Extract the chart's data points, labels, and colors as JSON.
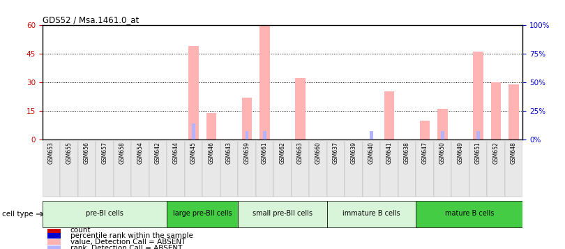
{
  "title": "GDS52 / Msa.1461.0_at",
  "samples": [
    "GSM653",
    "GSM655",
    "GSM656",
    "GSM657",
    "GSM658",
    "GSM654",
    "GSM642",
    "GSM644",
    "GSM645",
    "GSM646",
    "GSM643",
    "GSM659",
    "GSM661",
    "GSM662",
    "GSM663",
    "GSM660",
    "GSM637",
    "GSM639",
    "GSM640",
    "GSM641",
    "GSM638",
    "GSM647",
    "GSM650",
    "GSM649",
    "GSM651",
    "GSM652",
    "GSM648"
  ],
  "values_absent": [
    0,
    0,
    0,
    0,
    0,
    0,
    0,
    0,
    49,
    14,
    0,
    22,
    60,
    0,
    32,
    0,
    0,
    0,
    0,
    25,
    0,
    10,
    16,
    0,
    46,
    30,
    29
  ],
  "ranks_absent": [
    0,
    0,
    0,
    0,
    0,
    0,
    0,
    0,
    14,
    0,
    0,
    7,
    7,
    0,
    0,
    0,
    0,
    0,
    7,
    0,
    0,
    0,
    7,
    0,
    7,
    0,
    0
  ],
  "cell_groups": [
    {
      "label": "pre-BI cells",
      "start": 0,
      "end": 7,
      "color": "#d9f5d9"
    },
    {
      "label": "large pre-BII cells",
      "start": 7,
      "end": 11,
      "color": "#44cc44"
    },
    {
      "label": "small pre-BII cells",
      "start": 11,
      "end": 16,
      "color": "#d9f5d9"
    },
    {
      "label": "immature B cells",
      "start": 16,
      "end": 21,
      "color": "#d9f5d9"
    },
    {
      "label": "mature B cells",
      "start": 21,
      "end": 27,
      "color": "#44cc44"
    }
  ],
  "ylim_left": [
    0,
    60
  ],
  "ylim_right": [
    0,
    100
  ],
  "yticks_left": [
    0,
    15,
    30,
    45,
    60
  ],
  "yticks_right": [
    0,
    25,
    50,
    75,
    100
  ],
  "ytick_labels_left": [
    "0",
    "15",
    "30",
    "45",
    "60"
  ],
  "ytick_labels_right": [
    "0%",
    "25%",
    "50%",
    "75%",
    "100%"
  ],
  "absent_value_color": "#ffb3b3",
  "absent_rank_color": "#b3b3ff",
  "count_color": "#cc0000",
  "rank_color": "#0000cc",
  "bg_color": "#ffffff",
  "tick_label_color_left": "#cc0000",
  "tick_label_color_right": "#0000cc",
  "legend_items": [
    {
      "color": "#cc0000",
      "label": "count"
    },
    {
      "color": "#0000cc",
      "label": "percentile rank within the sample"
    },
    {
      "color": "#ffb3b3",
      "label": "value, Detection Call = ABSENT"
    },
    {
      "color": "#b3b3ff",
      "label": "rank, Detection Call = ABSENT"
    }
  ]
}
